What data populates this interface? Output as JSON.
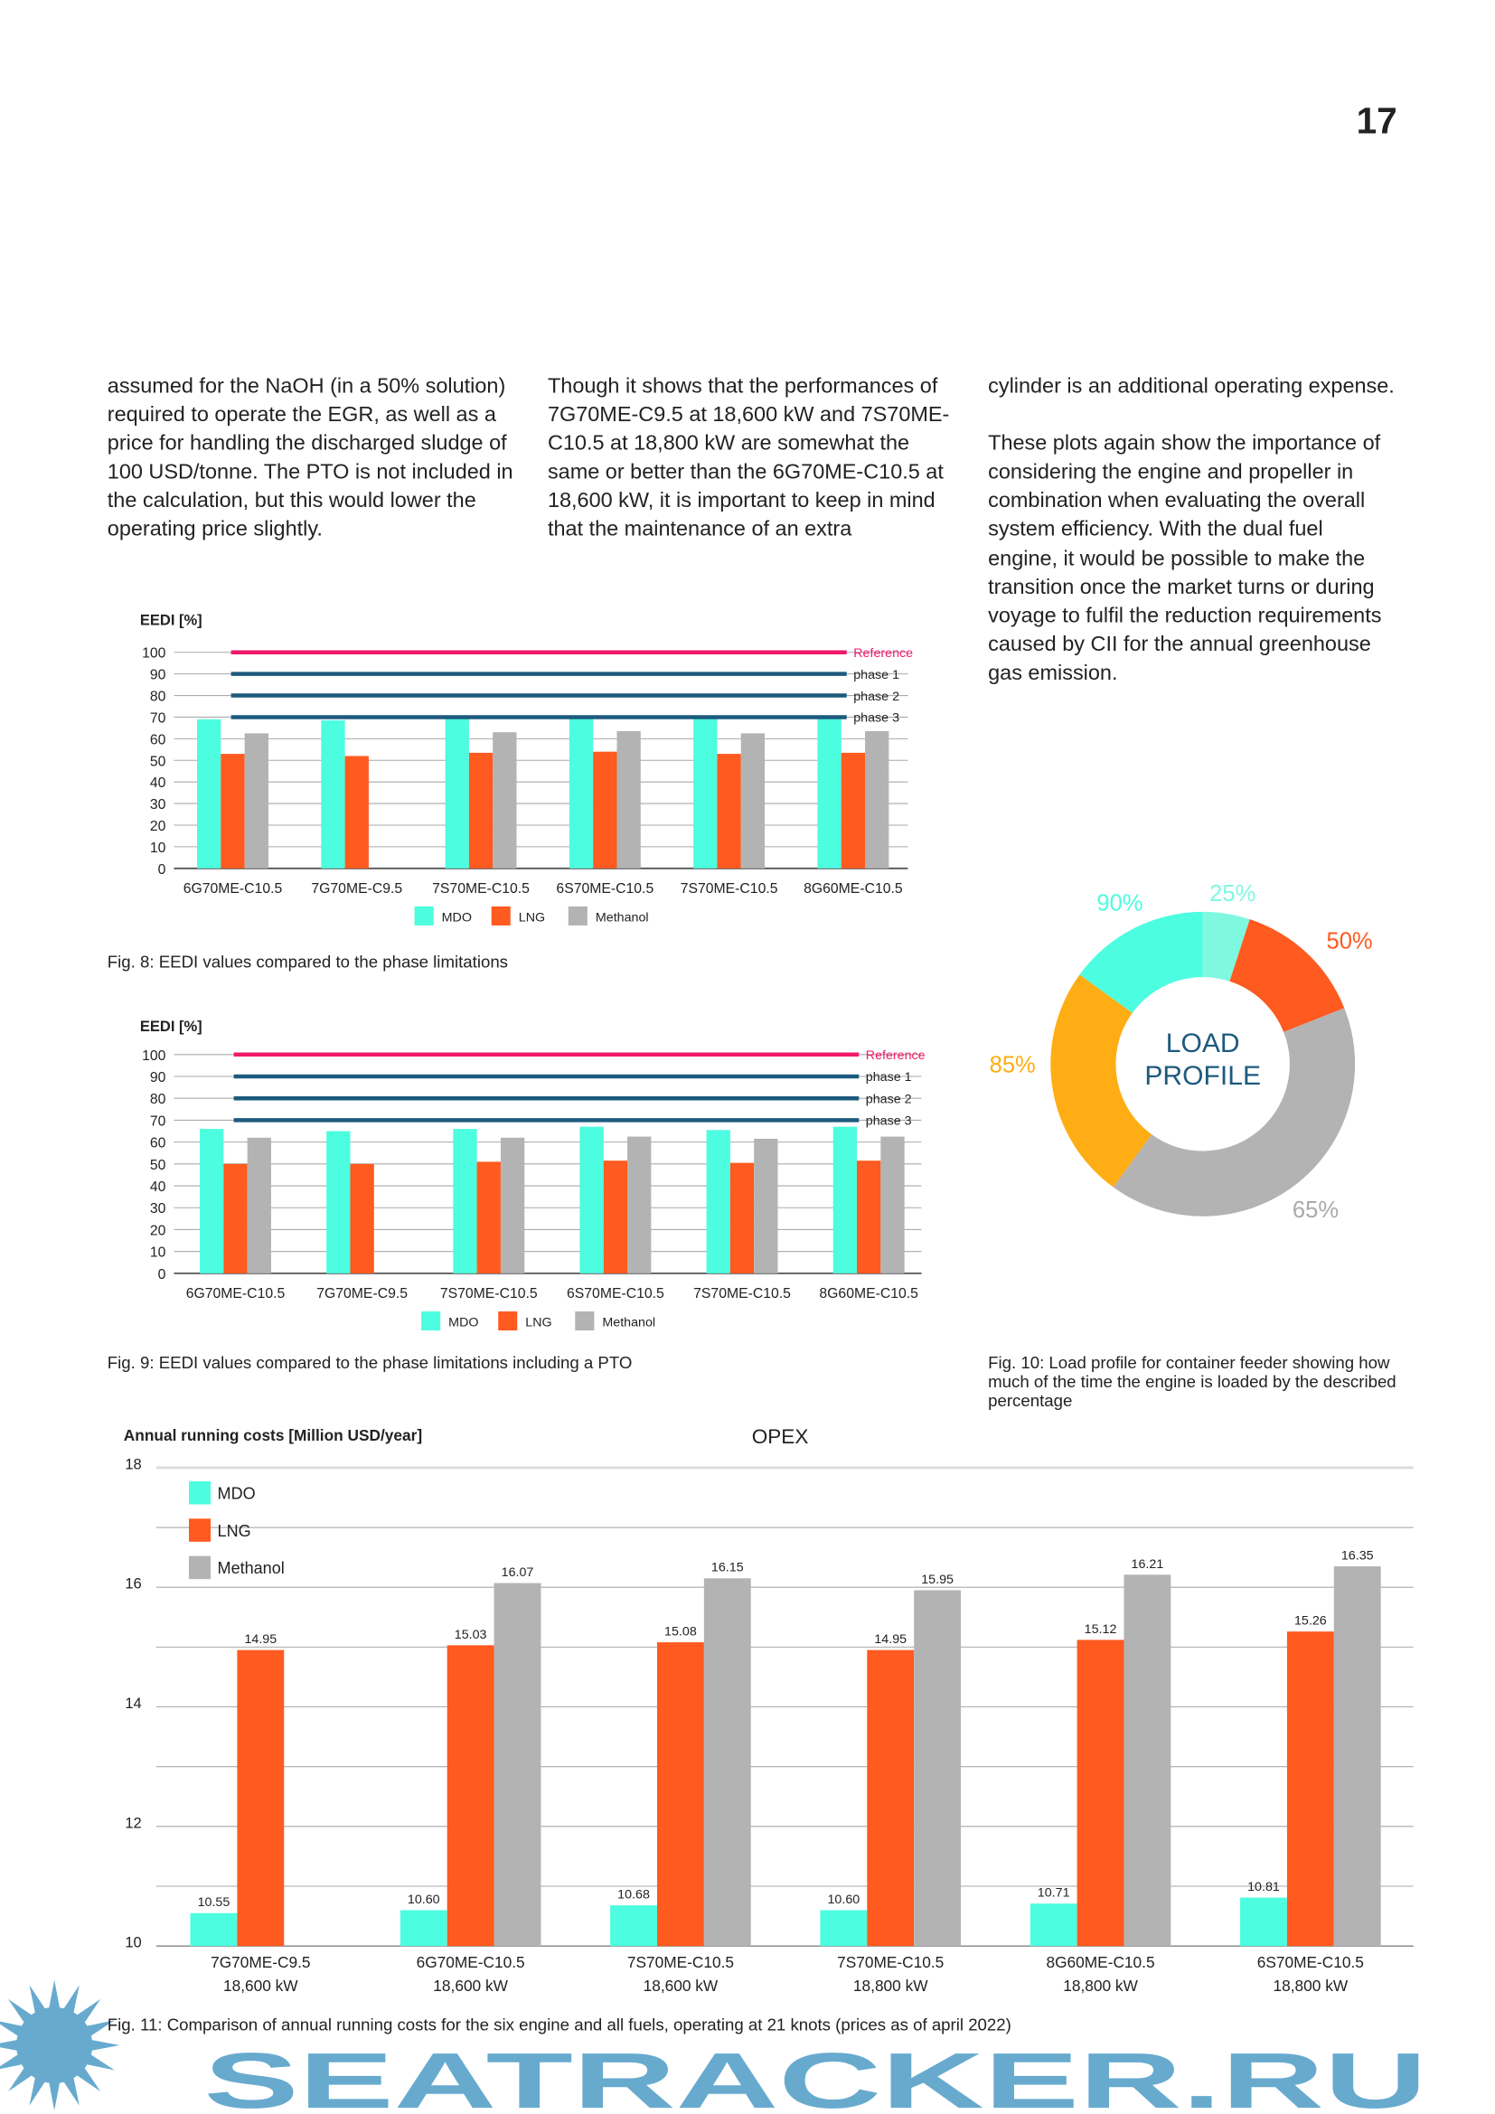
{
  "page_number": "17",
  "text_columns": [
    "assumed for the NaOH (in a 50% solution) required to operate the EGR, as well as a price for handling the discharged sludge of 100 USD/tonne. The PTO is not included in the calculation, but this would lower the operating price slightly.",
    "Though it shows that the performances of 7G70ME-C9.5 at 18,600 kW and 7S70ME-C10.5 at 18,800 kW are somewhat the same or better than the 6G70ME-C10.5 at 18,600 kW, it is important to keep in mind that the maintenance of an extra",
    "cylinder is an additional operating expense.\n\nThese plots again show the importance of considering the engine and propeller in combination when evaluating the overall system efficiency. With the dual fuel engine, it would be possible to make the transition once the market turns or during voyage to fulfil the reduction requirements caused by CII for the annual greenhouse gas emission."
  ],
  "colors": {
    "MDO": "#4dfde0",
    "LNG": "#ff5a1f",
    "Methanol": "#b3b3b3",
    "reference": "#f0196a",
    "phase": "#1d5a7d",
    "watermark": "#5fa6cc"
  },
  "chart_data": [
    {
      "type": "bar",
      "title": "EEDI [%]",
      "caption": "Fig. 8: EEDI values compared to the phase limitations",
      "ylim": [
        0,
        100
      ],
      "yticks": [
        "0",
        "10",
        "20",
        "30",
        "40",
        "50",
        "60",
        "70",
        "80",
        "90",
        "100"
      ],
      "grid": true,
      "categories": [
        "6G70ME-C10.5",
        "7G70ME-C9.5",
        "7S70ME-C10.5",
        "6S70ME-C10.5",
        "7S70ME-C10.5",
        "8G60ME-C10.5"
      ],
      "series": [
        {
          "name": "MDO",
          "values": [
            69,
            68.5,
            70,
            70,
            70,
            70
          ]
        },
        {
          "name": "LNG",
          "values": [
            53,
            52,
            53.5,
            54,
            53,
            53.5
          ]
        },
        {
          "name": "Methanol",
          "values": [
            62.5,
            null,
            63,
            63.5,
            62.5,
            63.5
          ]
        }
      ],
      "reference_lines": [
        {
          "label": "Reference",
          "value": 100
        },
        {
          "label": "phase 1",
          "value": 90
        },
        {
          "label": "phase 2",
          "value": 80
        },
        {
          "label": "phase 3",
          "value": 70
        }
      ],
      "legend": "bottom"
    },
    {
      "type": "bar",
      "title": "EEDI [%]",
      "caption": "Fig. 9: EEDI values compared to the phase limitations including a PTO",
      "ylim": [
        0,
        100
      ],
      "yticks": [
        "0",
        "10",
        "20",
        "30",
        "40",
        "50",
        "60",
        "70",
        "80",
        "90",
        "100"
      ],
      "grid": true,
      "categories": [
        "6G70ME-C10.5",
        "7G70ME-C9.5",
        "7S70ME-C10.5",
        "6S70ME-C10.5",
        "7S70ME-C10.5",
        "8G60ME-C10.5"
      ],
      "series": [
        {
          "name": "MDO",
          "values": [
            66,
            65,
            66,
            67,
            65.5,
            67
          ]
        },
        {
          "name": "LNG",
          "values": [
            50,
            50,
            51,
            51.5,
            50.5,
            51.5
          ]
        },
        {
          "name": "Methanol",
          "values": [
            62,
            null,
            62,
            62.5,
            61.5,
            62.5
          ]
        }
      ],
      "reference_lines": [
        {
          "label": "Reference",
          "value": 100
        },
        {
          "label": "phase 1",
          "value": 90
        },
        {
          "label": "phase 2",
          "value": 80
        },
        {
          "label": "phase 3",
          "value": 70
        }
      ],
      "legend": "bottom"
    },
    {
      "type": "pie",
      "center_label": [
        "LOAD",
        "PROFILE"
      ],
      "caption": "Fig. 10: Load profile for container feeder showing how much of the time the engine is loaded by the described percentage",
      "slices": [
        {
          "label": "25%",
          "share": 5,
          "color": "#7ff8e0"
        },
        {
          "label": "50%",
          "share": 14,
          "color": "#ff5a1f"
        },
        {
          "label": "65%",
          "share": 41,
          "color": "#b3b3b3"
        },
        {
          "label": "85%",
          "share": 25,
          "color": "#ffad14"
        },
        {
          "label": "90%",
          "share": 15,
          "color": "#4dfde0"
        }
      ]
    },
    {
      "type": "bar",
      "title": "OPEX",
      "ylabel": "Annual running costs [Million USD/year]",
      "caption": "Fig. 11: Comparison of annual running costs for the six engine and all fuels, operating at 21 knots (prices as of april 2022)",
      "ylim": [
        10,
        18
      ],
      "yticks": [
        "10",
        "12",
        "14",
        "16",
        "18"
      ],
      "grid": true,
      "categories": [
        [
          "7G70ME-C9.5",
          "18,600 kW"
        ],
        [
          "6G70ME-C10.5",
          "18,600 kW"
        ],
        [
          "7S70ME-C10.5",
          "18,600 kW"
        ],
        [
          "7S70ME-C10.5",
          "18,800 kW"
        ],
        [
          "8G60ME-C10.5",
          "18,800 kW"
        ],
        [
          "6S70ME-C10.5",
          "18,800 kW"
        ]
      ],
      "series": [
        {
          "name": "MDO",
          "values": [
            10.55,
            10.6,
            10.68,
            10.6,
            10.71,
            10.81
          ],
          "labels": [
            "10.55",
            "10.60",
            "10.68",
            "10.60",
            "10.71",
            "10.81"
          ]
        },
        {
          "name": "LNG",
          "values": [
            14.95,
            15.03,
            15.08,
            14.95,
            15.12,
            15.26
          ],
          "labels": [
            "14.95",
            "15.03",
            "15.08",
            "14.95",
            "15.12",
            "15.26"
          ]
        },
        {
          "name": "Methanol",
          "values": [
            null,
            16.07,
            16.15,
            15.95,
            16.21,
            16.35
          ],
          "labels": [
            "",
            "16.07",
            "16.15",
            "15.95",
            "16.21",
            "16.35"
          ]
        }
      ],
      "legend": "top-left"
    }
  ],
  "watermark": "SEATRACKER.RU"
}
